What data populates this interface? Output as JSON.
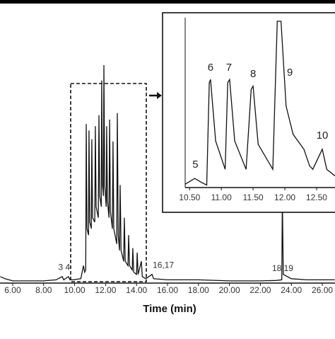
{
  "chart_data": [
    {
      "type": "line",
      "x_label": "Time (min)",
      "xlim": [
        5.18,
        26.82
      ],
      "ylim": [
        0,
        100
      ],
      "xticks": [
        {
          "value": 6,
          "label": "6.00"
        },
        {
          "value": 8,
          "label": "8.00"
        },
        {
          "value": 10,
          "label": "10.00"
        },
        {
          "value": 12,
          "label": "12.00"
        },
        {
          "value": 14,
          "label": "14.00"
        },
        {
          "value": 16,
          "label": "16.00"
        },
        {
          "value": 18,
          "label": "18.00"
        },
        {
          "value": 20,
          "label": "20.00"
        },
        {
          "value": 22,
          "label": "22.00"
        },
        {
          "value": 24,
          "label": "24.00"
        },
        {
          "value": 26,
          "label": "26.00"
        }
      ],
      "series": [
        {
          "color": "#111111",
          "x": [
            5.2,
            5.5,
            6.0,
            7.0,
            8.0,
            8.8,
            9.2,
            9.3,
            9.6,
            9.7,
            9.9,
            10.4,
            10.57,
            10.65,
            10.72,
            10.75,
            10.8,
            10.9,
            10.93,
            10.98,
            11.08,
            11.11,
            11.16,
            11.3,
            11.34,
            11.39,
            11.53,
            11.57,
            11.62,
            11.72,
            11.75,
            11.8,
            11.86,
            11.89,
            11.94,
            12.04,
            12.07,
            12.12,
            12.22,
            12.26,
            12.31,
            12.44,
            12.48,
            12.53,
            12.72,
            12.76,
            12.82,
            12.9,
            12.94,
            13.0,
            13.17,
            13.21,
            13.27,
            13.45,
            13.49,
            13.55,
            13.72,
            13.76,
            13.82,
            14.0,
            14.04,
            14.1,
            14.31,
            14.37,
            14.6,
            15.0,
            15.1,
            16.0,
            18.0,
            20.0,
            22.0,
            23.0,
            23.38,
            23.42,
            23.48,
            24.0,
            25.0,
            26.0,
            26.8
          ],
          "values": [
            3,
            2,
            1,
            1,
            1,
            1.5,
            3,
            1.5,
            3,
            1.5,
            1.5,
            2,
            8,
            5,
            6,
            73,
            25,
            22,
            70,
            28,
            25,
            66,
            30,
            28,
            72,
            35,
            30,
            77,
            40,
            35,
            93,
            45,
            40,
            100,
            45,
            35,
            72,
            38,
            30,
            75,
            33,
            25,
            65,
            25,
            18,
            78,
            22,
            15,
            45,
            15,
            10,
            30,
            10,
            8,
            22,
            8,
            6,
            16,
            5,
            4,
            14,
            4,
            10,
            3,
            2,
            4,
            2,
            1.5,
            1.5,
            1,
            1,
            1.2,
            1.5,
            40,
            4,
            2,
            1.5,
            1.5,
            1.5
          ]
        }
      ],
      "annotations": [
        {
          "text": "3 4",
          "x": 9.33,
          "y": 7
        },
        {
          "text": "16,17",
          "x": 15.73,
          "y": 8
        },
        {
          "text": "18 19",
          "x": 23.44,
          "y": 6.5
        }
      ]
    },
    {
      "type": "line",
      "xlim": [
        10.43,
        12.79
      ],
      "ylim": [
        0,
        100
      ],
      "xticks": [
        {
          "value": 10.5,
          "label": "10.50"
        },
        {
          "value": 11,
          "label": "11.00"
        },
        {
          "value": 11.5,
          "label": "11.50"
        },
        {
          "value": 12,
          "label": "12.00"
        },
        {
          "value": 12.5,
          "label": "12.50"
        }
      ],
      "series": [
        {
          "color": "#111111",
          "x": [
            10.43,
            10.58,
            10.69,
            10.77,
            10.81,
            10.83,
            10.91,
            11.06,
            11.1,
            11.13,
            11.21,
            11.39,
            11.47,
            11.5,
            11.58,
            11.81,
            11.88,
            11.94,
            12.02,
            12.13,
            12.3,
            12.39,
            12.44,
            12.54,
            12.59,
            12.66,
            12.79
          ],
          "values": [
            2,
            5.5,
            3,
            1.5,
            63,
            65,
            28,
            11,
            63,
            65,
            28,
            11,
            59,
            61,
            26,
            11,
            100,
            100,
            49,
            32,
            23,
            13,
            11,
            19,
            23,
            11,
            7
          ]
        }
      ],
      "annotations": [
        {
          "text": "5",
          "x": 10.59,
          "y": 13.6
        },
        {
          "text": "6",
          "x": 10.83,
          "y": 72
        },
        {
          "text": "7",
          "x": 11.12,
          "y": 72
        },
        {
          "text": "8",
          "x": 11.5,
          "y": 68
        },
        {
          "text": "9",
          "x": 12.08,
          "y": 69
        },
        {
          "text": "10",
          "x": 12.59,
          "y": 31
        }
      ]
    }
  ]
}
